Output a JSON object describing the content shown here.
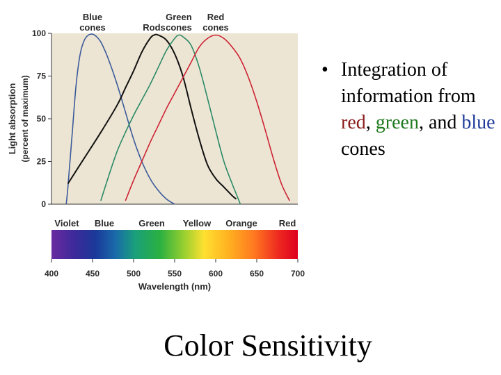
{
  "slide": {
    "title": "Color Sensitivity",
    "bullet": {
      "marker": "•",
      "line_start": "Integration of information from",
      "red_word": "red",
      "sep1": ", ",
      "green_word": "green",
      "sep2": ", and",
      "blue_word": "blue",
      "line_end": " cones",
      "red_color": "#8b1a1a",
      "green_color": "#1f7a1f",
      "blue_color": "#1f3a9a"
    }
  },
  "chart_data": {
    "type": "line",
    "xlabel": "Wavelength (nm)",
    "ylabel": "Light absorption",
    "ylabel_sub": "(percent of maximum)",
    "xlim": [
      400,
      700
    ],
    "ylim": [
      0,
      100
    ],
    "x_ticks": [
      "400",
      "450",
      "500",
      "550",
      "600",
      "650",
      "700"
    ],
    "y_ticks": [
      "0",
      "25",
      "50",
      "75",
      "100"
    ],
    "color_bands": [
      "Violet",
      "Blue",
      "Green",
      "Yellow",
      "Orange",
      "Red"
    ],
    "plot_background": "#ede5d3",
    "series": [
      {
        "name": "Blue cones",
        "label_lines": [
          "Blue",
          "cones"
        ],
        "color": "#3a5a9a",
        "x": [
          418,
          420,
          425,
          430,
          435,
          440,
          445,
          450,
          455,
          460,
          465,
          470,
          480,
          490,
          500,
          510,
          520,
          530,
          540,
          550
        ],
        "y": [
          0,
          10,
          40,
          70,
          88,
          96,
          99,
          99.5,
          98,
          95,
          90,
          84,
          70,
          54,
          38,
          25,
          15,
          8,
          3,
          0
        ]
      },
      {
        "name": "Rods",
        "label_lines": [
          "Rods"
        ],
        "color": "#111111",
        "x": [
          420,
          440,
          460,
          480,
          490,
          500,
          510,
          520,
          525,
          530,
          540,
          550,
          560,
          570,
          580,
          590,
          600,
          610,
          620,
          625
        ],
        "y": [
          12,
          27,
          42,
          58,
          68,
          78,
          89,
          97,
          99,
          99,
          96,
          88,
          75,
          56,
          38,
          23,
          15,
          10,
          5,
          3
        ]
      },
      {
        "name": "Green cones",
        "label_lines": [
          "Green",
          "cones"
        ],
        "color": "#2a8a66",
        "x": [
          460,
          470,
          480,
          490,
          500,
          510,
          520,
          530,
          540,
          550,
          555,
          560,
          570,
          580,
          590,
          600,
          610,
          620,
          625,
          630
        ],
        "y": [
          2,
          17,
          31,
          42,
          52,
          61,
          70,
          80,
          90,
          97,
          99,
          98,
          93,
          80,
          62,
          43,
          25,
          12,
          6,
          0
        ]
      },
      {
        "name": "Red cones",
        "label_lines": [
          "Red",
          "cones"
        ],
        "color": "#cc2233",
        "x": [
          490,
          500,
          510,
          520,
          530,
          540,
          550,
          560,
          570,
          580,
          590,
          600,
          610,
          620,
          630,
          640,
          650,
          660,
          670,
          680,
          690
        ],
        "y": [
          2,
          14,
          25,
          36,
          46,
          56,
          65,
          74,
          83,
          92,
          97,
          99,
          97,
          92,
          85,
          74,
          60,
          44,
          27,
          12,
          2
        ]
      }
    ]
  }
}
